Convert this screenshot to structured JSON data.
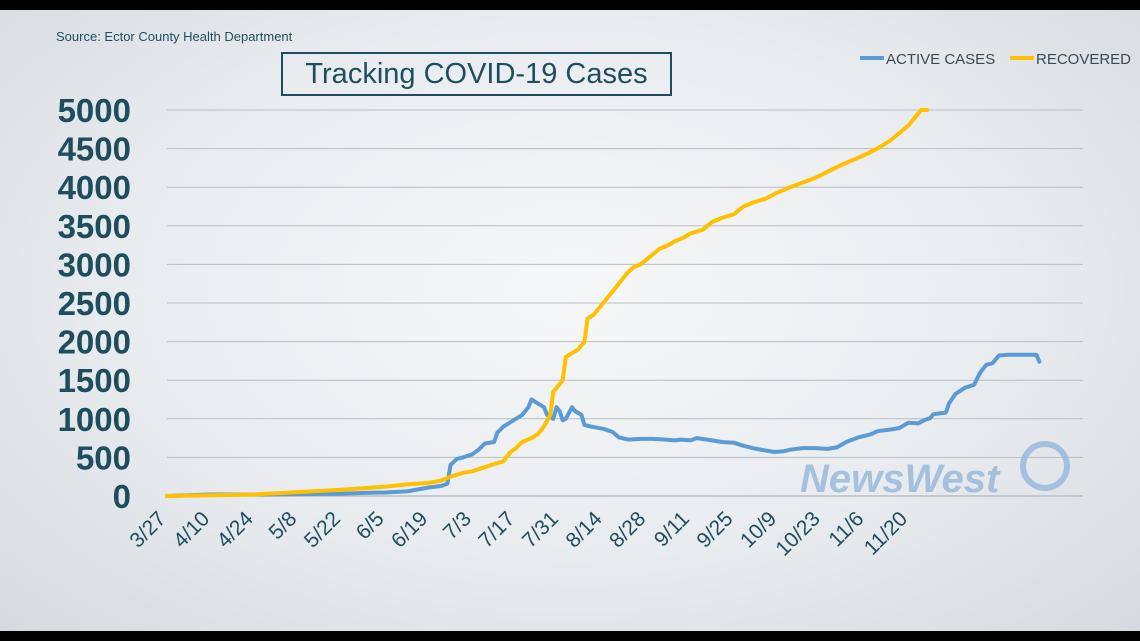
{
  "source_text": "Source: Ector County Health Department",
  "watermark": "NewsWest",
  "chart_data": {
    "type": "line",
    "title": "Tracking COVID-19 Cases",
    "xlabel": "",
    "ylabel": "",
    "ylim": [
      0,
      5000
    ],
    "yticks": [
      0,
      500,
      1000,
      1500,
      2000,
      2500,
      3000,
      3500,
      4000,
      4500,
      5000
    ],
    "xticks": [
      "3/27",
      "4/10",
      "4/24",
      "5/8",
      "5/22",
      "6/5",
      "6/19",
      "7/3",
      "7/17",
      "7/31",
      "8/14",
      "8/28",
      "9/11",
      "9/25",
      "10/9",
      "10/23",
      "11/6",
      "11/20"
    ],
    "grid": true,
    "legend_position": "top-right",
    "x_unit": "days from 3/27",
    "series": [
      {
        "name": "ACTIVE CASES",
        "color": "#5b9bd5",
        "points": [
          [
            0,
            0
          ],
          [
            14,
            20
          ],
          [
            28,
            20
          ],
          [
            42,
            25
          ],
          [
            56,
            30
          ],
          [
            63,
            40
          ],
          [
            70,
            45
          ],
          [
            77,
            60
          ],
          [
            84,
            110
          ],
          [
            88,
            130
          ],
          [
            90,
            160
          ],
          [
            91,
            400
          ],
          [
            93,
            480
          ],
          [
            95,
            500
          ],
          [
            98,
            540
          ],
          [
            100,
            600
          ],
          [
            102,
            680
          ],
          [
            105,
            700
          ],
          [
            106,
            820
          ],
          [
            108,
            900
          ],
          [
            110,
            950
          ],
          [
            112,
            1000
          ],
          [
            114,
            1050
          ],
          [
            116,
            1150
          ],
          [
            117,
            1250
          ],
          [
            119,
            1200
          ],
          [
            121,
            1150
          ],
          [
            122,
            1050
          ],
          [
            124,
            1000
          ],
          [
            125,
            1150
          ],
          [
            126,
            1100
          ],
          [
            127,
            980
          ],
          [
            128,
            1000
          ],
          [
            130,
            1150
          ],
          [
            131,
            1100
          ],
          [
            133,
            1050
          ],
          [
            134,
            920
          ],
          [
            136,
            900
          ],
          [
            140,
            870
          ],
          [
            143,
            830
          ],
          [
            145,
            760
          ],
          [
            148,
            730
          ],
          [
            152,
            740
          ],
          [
            156,
            740
          ],
          [
            160,
            730
          ],
          [
            163,
            720
          ],
          [
            165,
            730
          ],
          [
            168,
            720
          ],
          [
            170,
            750
          ],
          [
            175,
            720
          ],
          [
            178,
            700
          ],
          [
            182,
            690
          ],
          [
            185,
            650
          ],
          [
            188,
            620
          ],
          [
            192,
            590
          ],
          [
            195,
            570
          ],
          [
            198,
            580
          ],
          [
            200,
            600
          ],
          [
            204,
            620
          ],
          [
            208,
            620
          ],
          [
            212,
            610
          ],
          [
            215,
            630
          ],
          [
            218,
            700
          ],
          [
            222,
            760
          ],
          [
            226,
            800
          ],
          [
            228,
            840
          ],
          [
            232,
            860
          ],
          [
            235,
            880
          ],
          [
            238,
            950
          ],
          [
            241,
            940
          ],
          [
            243,
            980
          ],
          [
            245,
            1010
          ],
          [
            246,
            1060
          ],
          [
            248,
            1070
          ],
          [
            250,
            1080
          ],
          [
            251,
            1200
          ],
          [
            253,
            1320
          ],
          [
            256,
            1400
          ],
          [
            259,
            1440
          ],
          [
            261,
            1600
          ],
          [
            263,
            1700
          ],
          [
            265,
            1720
          ],
          [
            267,
            1820
          ],
          [
            270,
            1830
          ],
          [
            275,
            1830
          ],
          [
            279,
            1830
          ],
          [
            280,
            1740
          ]
        ]
      },
      {
        "name": "RECOVERED",
        "color": "#ffc000",
        "points": [
          [
            0,
            0
          ],
          [
            14,
            10
          ],
          [
            28,
            20
          ],
          [
            42,
            50
          ],
          [
            56,
            80
          ],
          [
            63,
            100
          ],
          [
            70,
            120
          ],
          [
            77,
            150
          ],
          [
            84,
            170
          ],
          [
            88,
            200
          ],
          [
            91,
            250
          ],
          [
            95,
            300
          ],
          [
            98,
            320
          ],
          [
            101,
            360
          ],
          [
            104,
            400
          ],
          [
            108,
            450
          ],
          [
            110,
            560
          ],
          [
            112,
            620
          ],
          [
            114,
            700
          ],
          [
            117,
            750
          ],
          [
            119,
            800
          ],
          [
            121,
            900
          ],
          [
            123,
            1050
          ],
          [
            124,
            1350
          ],
          [
            126,
            1450
          ],
          [
            127,
            1500
          ],
          [
            128,
            1800
          ],
          [
            130,
            1850
          ],
          [
            132,
            1900
          ],
          [
            134,
            2000
          ],
          [
            135,
            2300
          ],
          [
            137,
            2350
          ],
          [
            139,
            2450
          ],
          [
            142,
            2600
          ],
          [
            144,
            2700
          ],
          [
            146,
            2800
          ],
          [
            148,
            2900
          ],
          [
            150,
            2970
          ],
          [
            152,
            3000
          ],
          [
            155,
            3100
          ],
          [
            158,
            3200
          ],
          [
            161,
            3250
          ],
          [
            163,
            3300
          ],
          [
            166,
            3350
          ],
          [
            168,
            3400
          ],
          [
            172,
            3450
          ],
          [
            175,
            3550
          ],
          [
            178,
            3600
          ],
          [
            182,
            3650
          ],
          [
            185,
            3750
          ],
          [
            188,
            3800
          ],
          [
            192,
            3850
          ],
          [
            196,
            3930
          ],
          [
            200,
            4000
          ],
          [
            204,
            4060
          ],
          [
            208,
            4120
          ],
          [
            212,
            4200
          ],
          [
            216,
            4280
          ],
          [
            220,
            4350
          ],
          [
            224,
            4420
          ],
          [
            228,
            4500
          ],
          [
            232,
            4600
          ],
          [
            235,
            4700
          ],
          [
            238,
            4800
          ],
          [
            240,
            4900
          ],
          [
            242,
            5000
          ],
          [
            244,
            5000
          ]
        ]
      }
    ]
  }
}
